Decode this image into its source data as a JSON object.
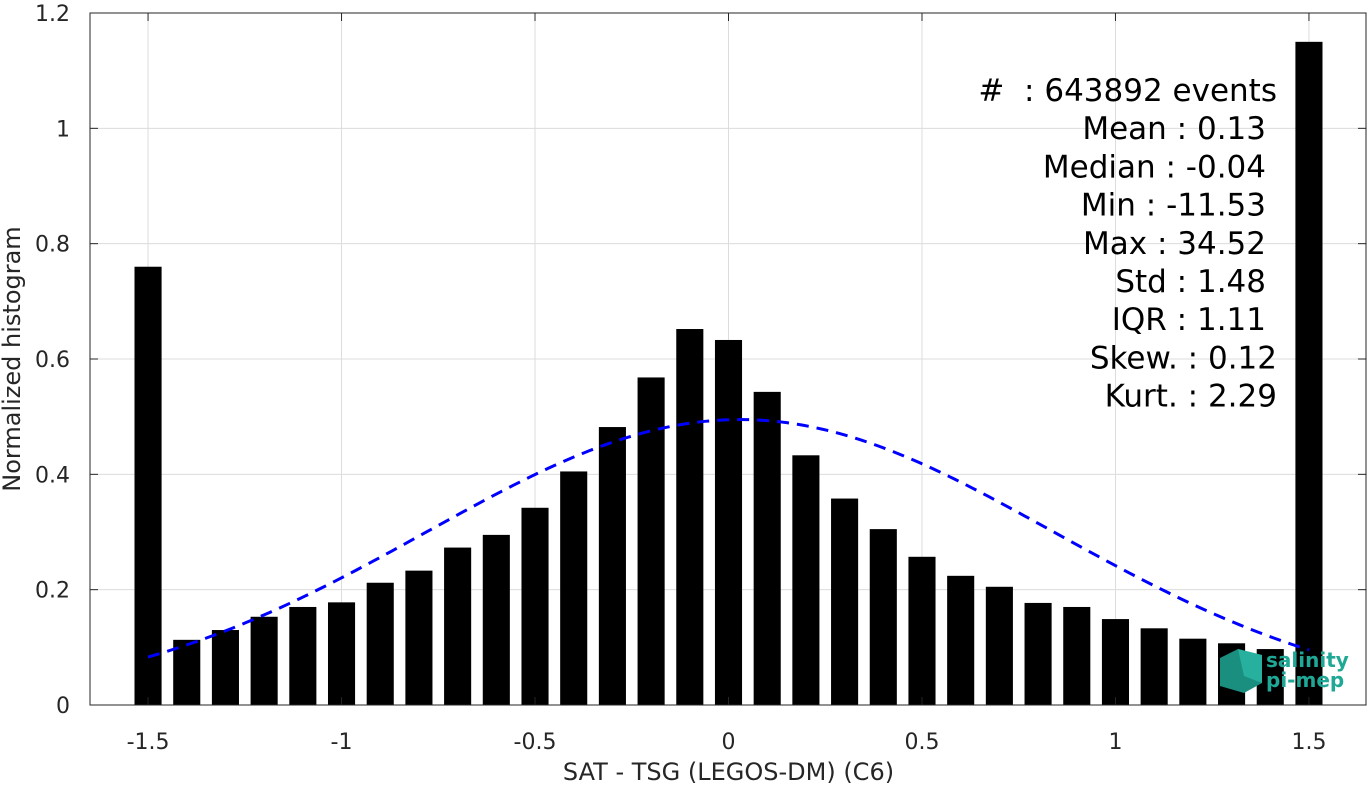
{
  "chart_data": {
    "type": "bar",
    "title": "",
    "xlabel": "SAT - TSG (LEGOS-DM) (C6)",
    "ylabel": "Normalized histogram",
    "xlim": [
      -1.65,
      1.65
    ],
    "ylim": [
      0,
      1.2
    ],
    "grid": true,
    "xticks": [
      -1.5,
      -1,
      -0.5,
      0,
      0.5,
      1,
      1.5
    ],
    "xtick_labels": [
      "-1.5",
      "-1",
      "-0.5",
      "0",
      "0.5",
      "1",
      "1.5"
    ],
    "yticks": [
      0,
      0.2,
      0.4,
      0.6,
      0.8,
      1,
      1.2
    ],
    "ytick_labels": [
      "0",
      "0.2",
      "0.4",
      "0.6",
      "0.8",
      "1",
      "1.2"
    ],
    "bin_width": 0.1,
    "bar_width_fraction": 0.7,
    "x": [
      -1.5,
      -1.4,
      -1.3,
      -1.2,
      -1.1,
      -1.0,
      -0.9,
      -0.8,
      -0.7,
      -0.6,
      -0.5,
      -0.4,
      -0.3,
      -0.2,
      -0.1,
      0.0,
      0.1,
      0.2,
      0.3,
      0.4,
      0.5,
      0.6,
      0.7,
      0.8,
      0.9,
      1.0,
      1.1,
      1.2,
      1.3,
      1.4,
      1.5
    ],
    "values": [
      0.76,
      0.113,
      0.13,
      0.153,
      0.17,
      0.178,
      0.212,
      0.233,
      0.273,
      0.295,
      0.342,
      0.405,
      0.482,
      0.568,
      0.652,
      0.633,
      0.543,
      0.433,
      0.358,
      0.305,
      0.257,
      0.224,
      0.205,
      0.177,
      0.17,
      0.149,
      0.133,
      0.115,
      0.107,
      0.097,
      1.15
    ],
    "fit": {
      "type": "gaussian",
      "mean": 0.03,
      "std": 0.81,
      "peak": 0.495,
      "x_range": [
        -1.5,
        1.5
      ],
      "color": "#0000ff",
      "style": "dashed"
    },
    "bar_color": "#000000"
  },
  "stats": [
    "#  : 643892 events",
    "Mean : 0.13",
    "Median : -0.04",
    "Min : -11.53",
    "Max : 34.52",
    "Std : 1.48",
    "IQR : 1.11",
    "Skew. : 0.12",
    "Kurt. : 2.29"
  ],
  "logo": {
    "line1": "salinity",
    "line2": "pi-mep",
    "color": "#1fa896"
  }
}
